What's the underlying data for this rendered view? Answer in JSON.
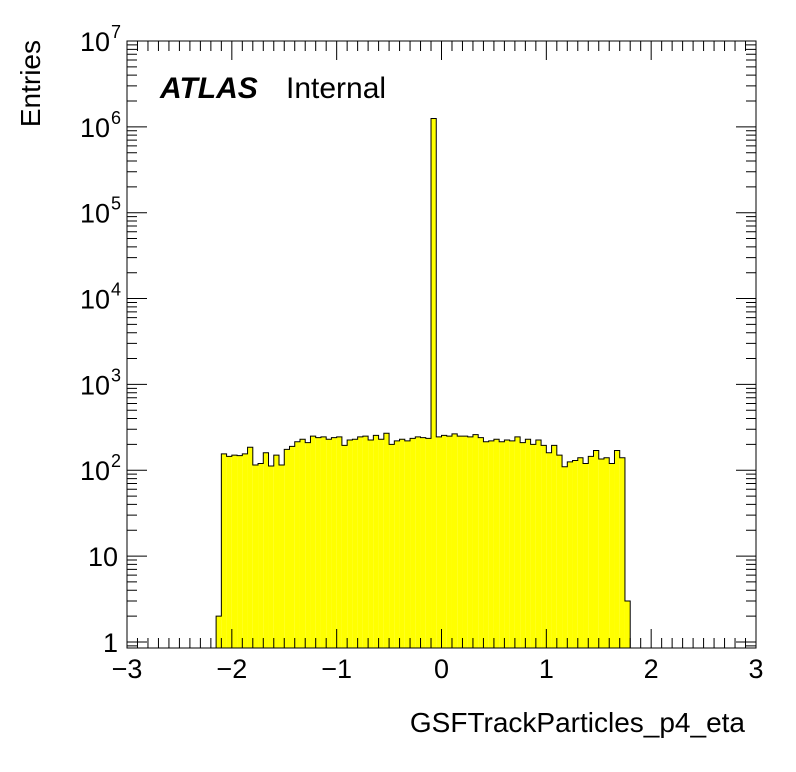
{
  "experiment_label": "ATLAS",
  "status_label": "Internal",
  "colors": {
    "fill": "#ffff00",
    "line": "#000000",
    "background": "#ffffff"
  },
  "chart_data": {
    "type": "bar",
    "histogram": true,
    "xlabel": "GSFTrackParticles_p4_eta",
    "ylabel": "Entries",
    "xlim": [
      -3,
      3
    ],
    "ylim": [
      0.85,
      10000000
    ],
    "yscale": "log",
    "grid": false,
    "legend": "none",
    "x_ticks": [
      {
        "value": -3,
        "label": "−3"
      },
      {
        "value": -2,
        "label": "−2"
      },
      {
        "value": -1,
        "label": "−1"
      },
      {
        "value": 0,
        "label": "0"
      },
      {
        "value": 1,
        "label": "1"
      },
      {
        "value": 2,
        "label": "2"
      },
      {
        "value": 3,
        "label": "3"
      }
    ],
    "y_ticks": [
      {
        "value": 1,
        "label": "1",
        "sup": ""
      },
      {
        "value": 10,
        "label": "10",
        "sup": ""
      },
      {
        "value": 100,
        "label": "10",
        "sup": "2"
      },
      {
        "value": 1000,
        "label": "10",
        "sup": "3"
      },
      {
        "value": 10000,
        "label": "10",
        "sup": "4"
      },
      {
        "value": 100000,
        "label": "10",
        "sup": "5"
      },
      {
        "value": 1000000,
        "label": "10",
        "sup": "6"
      },
      {
        "value": 10000000,
        "label": "10",
        "sup": "7"
      }
    ],
    "bin_start": -2.15,
    "bin_width": 0.05,
    "values": [
      2,
      155,
      145,
      150,
      148,
      155,
      185,
      115,
      120,
      160,
      112,
      150,
      115,
      175,
      190,
      215,
      230,
      210,
      250,
      240,
      245,
      230,
      240,
      245,
      195,
      225,
      230,
      245,
      250,
      225,
      255,
      230,
      270,
      200,
      220,
      230,
      220,
      235,
      245,
      240,
      235,
      1250000,
      245,
      255,
      250,
      265,
      250,
      250,
      245,
      260,
      240,
      215,
      220,
      230,
      215,
      225,
      220,
      245,
      210,
      230,
      200,
      225,
      195,
      160,
      195,
      150,
      110,
      125,
      130,
      140,
      120,
      145,
      170,
      135,
      140,
      120,
      170,
      140,
      3
    ]
  }
}
